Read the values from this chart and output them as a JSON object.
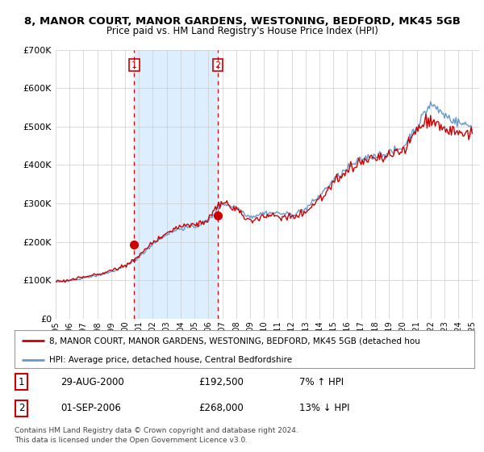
{
  "title": "8, MANOR COURT, MANOR GARDENS, WESTONING, BEDFORD, MK45 5GB",
  "subtitle": "Price paid vs. HM Land Registry's House Price Index (HPI)",
  "legend_line1": "8, MANOR COURT, MANOR GARDENS, WESTONING, BEDFORD, MK45 5GB (detached hou",
  "legend_line2": "HPI: Average price, detached house, Central Bedfordshire",
  "footer1": "Contains HM Land Registry data © Crown copyright and database right 2024.",
  "footer2": "This data is licensed under the Open Government Licence v3.0.",
  "sale1_label": "1",
  "sale1_date": "29-AUG-2000",
  "sale1_price": "£192,500",
  "sale1_hpi": "7% ↑ HPI",
  "sale1_year": 2000.66,
  "sale1_value": 192500,
  "sale2_label": "2",
  "sale2_date": "01-SEP-2006",
  "sale2_price": "£268,000",
  "sale2_hpi": "13% ↓ HPI",
  "sale2_year": 2006.67,
  "sale2_value": 268000,
  "ylim": [
    0,
    700000
  ],
  "yticks": [
    0,
    100000,
    200000,
    300000,
    400000,
    500000,
    600000,
    700000
  ],
  "ytick_labels": [
    "£0",
    "£100K",
    "£200K",
    "£300K",
    "£400K",
    "£500K",
    "£600K",
    "£700K"
  ],
  "line_color_red": "#cc0000",
  "line_color_blue": "#6699cc",
  "shade_color": "#ddeeff",
  "vline_color": "#cc0000",
  "point_color": "#cc0000",
  "background_color": "#ffffff",
  "grid_color": "#cccccc",
  "xlim_min": 1995.0,
  "xlim_max": 2025.5
}
